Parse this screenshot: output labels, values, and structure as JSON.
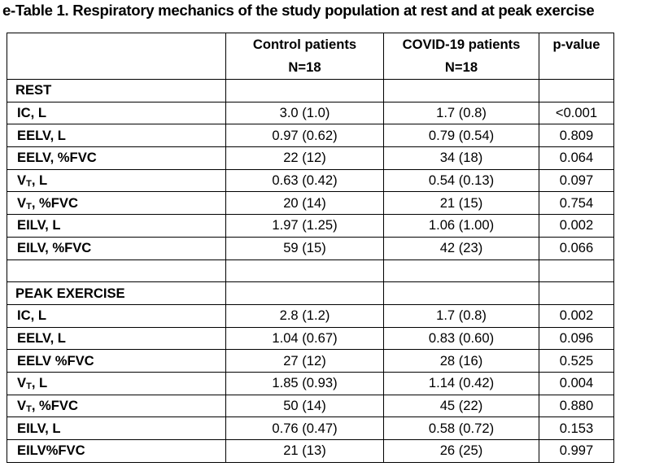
{
  "title": "e-Table 1. Respiratory mechanics of the study population at rest and at peak exercise",
  "header": {
    "col1_line1": "Control patients",
    "col1_line2": "N=18",
    "col2_line1": "COVID-19 patients",
    "col2_line2": "N=18",
    "col3": "p-value"
  },
  "rest": {
    "label": "REST",
    "rows": [
      {
        "label": "IC, L",
        "control": "3.0 (1.0)",
        "covid": "1.7 (0.8)",
        "p": "<0.001"
      },
      {
        "label": "EELV, L",
        "control": "0.97 (0.62)",
        "covid": "0.79 (0.54)",
        "p": "0.809"
      },
      {
        "label": "EELV, %FVC",
        "control": "22 (12)",
        "covid": "34 (18)",
        "p": "0.064"
      },
      {
        "label_main": "V",
        "label_sub": "T",
        "label_rest": ", L",
        "control": "0.63 (0.42)",
        "covid": "0.54 (0.13)",
        "p": "0.097"
      },
      {
        "label_main": "V",
        "label_sub": "T",
        "label_rest": ", %FVC",
        "control": "20 (14)",
        "covid": "21 (15)",
        "p": "0.754"
      },
      {
        "label": "EILV, L",
        "control": "1.97 (1.25)",
        "covid": "1.06 (1.00)",
        "p": "0.002"
      },
      {
        "label": "EILV, %FVC",
        "control": "59 (15)",
        "covid": "42 (23)",
        "p": "0.066"
      }
    ]
  },
  "peak": {
    "label": "PEAK EXERCISE",
    "rows": [
      {
        "label": "IC, L",
        "control": "2.8 (1.2)",
        "covid": "1.7 (0.8)",
        "p": "0.002"
      },
      {
        "label": "EELV, L",
        "control": "1.04 (0.67)",
        "covid": "0.83 (0.60)",
        "p": "0.096"
      },
      {
        "label": "EELV %FVC",
        "control": "27 (12)",
        "covid": "28 (16)",
        "p": "0.525"
      },
      {
        "label_main": "V",
        "label_sub": "T",
        "label_rest": ", L",
        "control": "1.85 (0.93)",
        "covid": "1.14 (0.42)",
        "p": "0.004"
      },
      {
        "label_main": "V",
        "label_sub": "T",
        "label_rest": ", %FVC",
        "control": "50 (14)",
        "covid": "45 (22)",
        "p": "0.880"
      },
      {
        "label": "EILV, L",
        "control": "0.76 (0.47)",
        "covid": "0.58 (0.72)",
        "p": "0.153"
      },
      {
        "label": "EILV%FVC",
        "control": "21 (13)",
        "covid": "26 (25)",
        "p": "0.997"
      }
    ]
  }
}
